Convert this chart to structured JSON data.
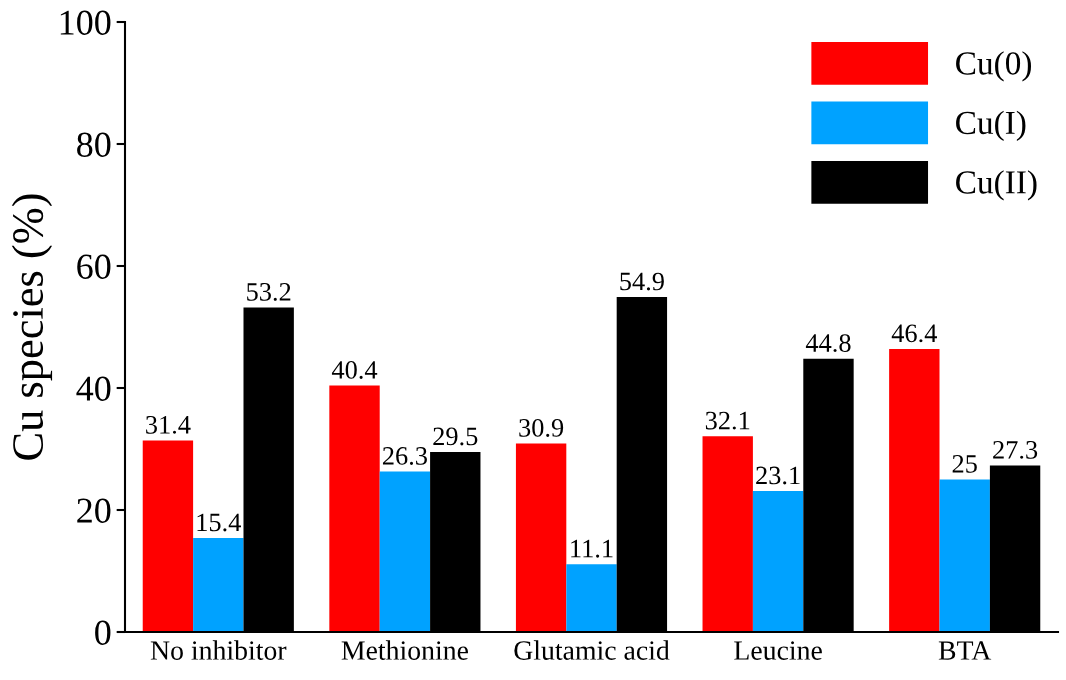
{
  "chart_data": {
    "type": "bar",
    "ylabel": "Cu species (%)",
    "categories": [
      "No inhibitor",
      "Methionine",
      "Glutamic acid",
      "Leucine",
      "BTA"
    ],
    "series": [
      {
        "name": "Cu(0)",
        "color": "#ff0000",
        "values": [
          31.4,
          40.4,
          30.9,
          32.1,
          46.4
        ]
      },
      {
        "name": "Cu(I)",
        "color": "#00a2ff",
        "values": [
          15.4,
          26.3,
          11.1,
          23.1,
          25
        ]
      },
      {
        "name": "Cu(II)",
        "color": "#000000",
        "values": [
          53.2,
          29.5,
          54.9,
          44.8,
          27.3
        ]
      }
    ],
    "ylim": [
      0,
      100
    ],
    "yticks": [
      0,
      20,
      40,
      60,
      80,
      100
    ],
    "grid": false,
    "legend": "top right",
    "data_labels": true
  }
}
